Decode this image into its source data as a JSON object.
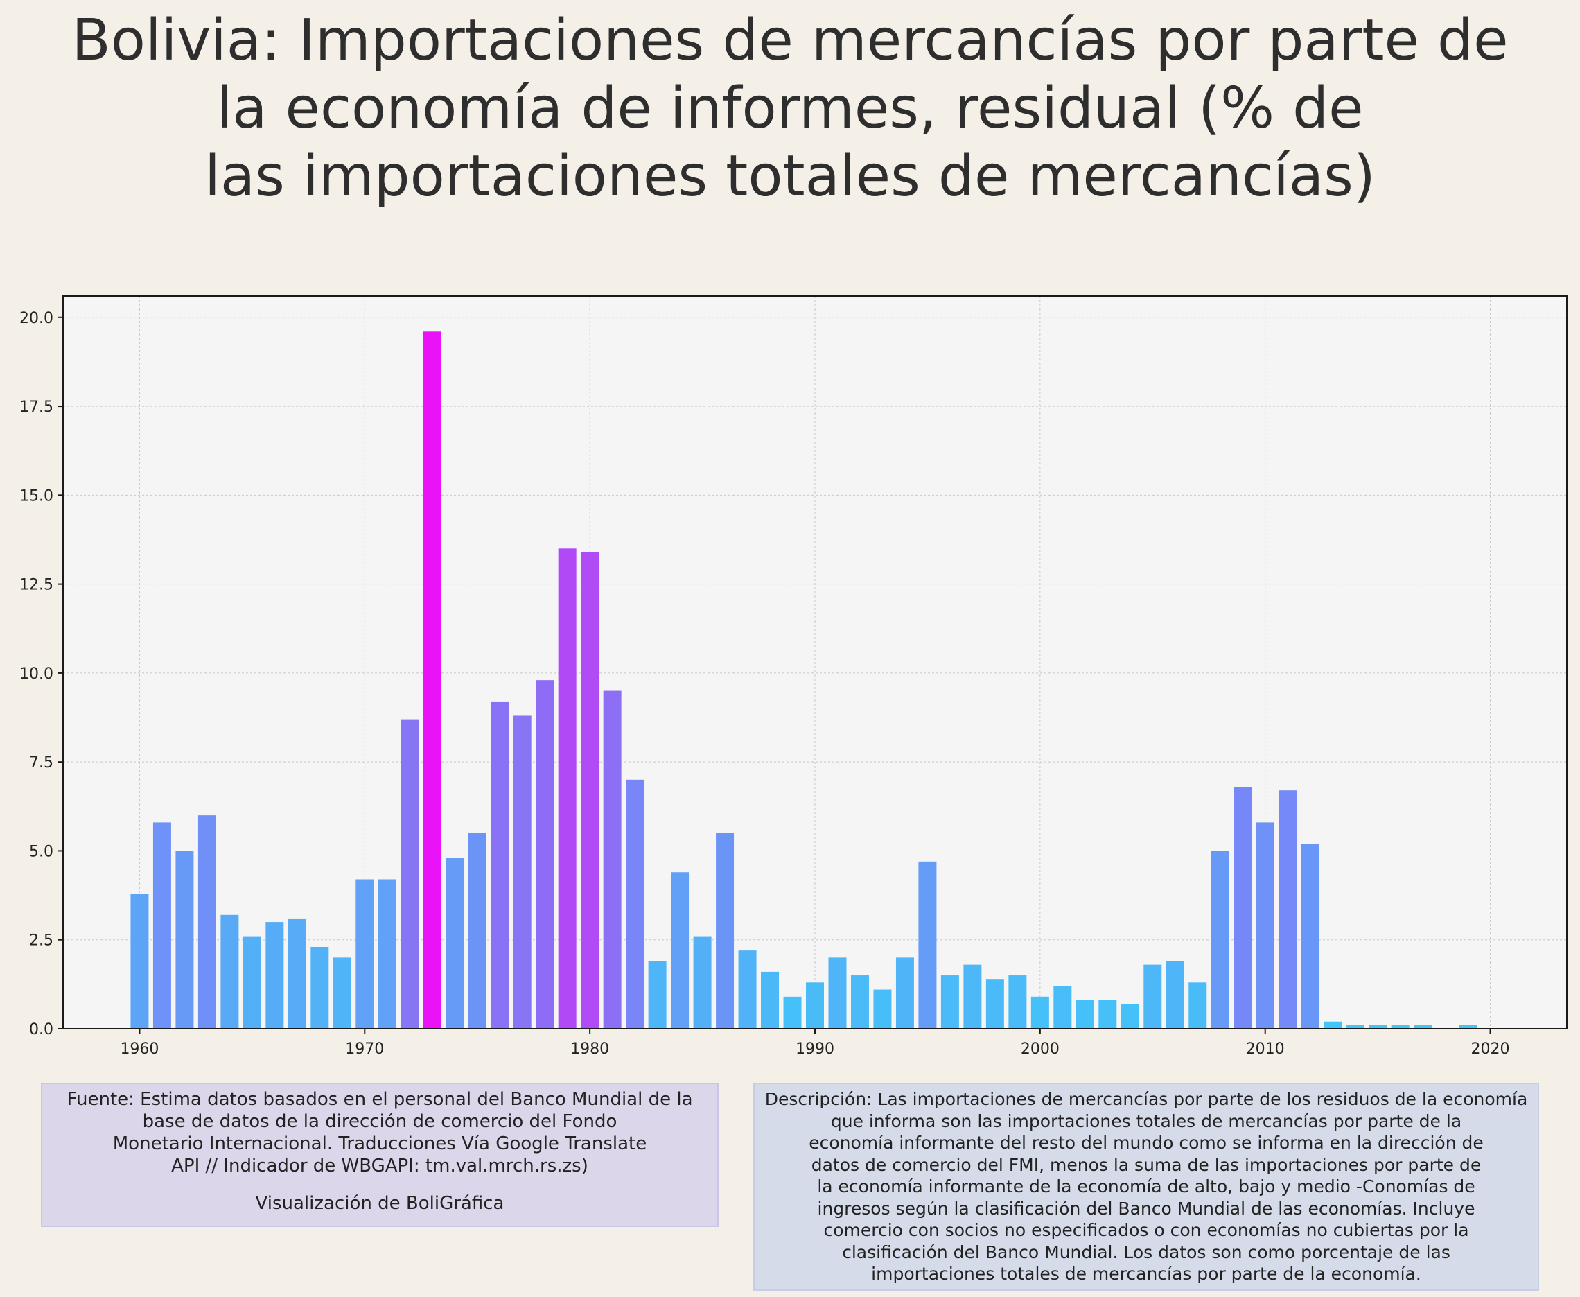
{
  "title_lines": [
    "Bolivia:  Importaciones de mercancías por parte de",
    "la economía de informes, residual (% de",
    "las importaciones totales de mercancías)"
  ],
  "source_text": {
    "lines": [
      "Fuente: Estima datos basados en el personal del Banco Mundial de la",
      "base de datos de la dirección de comercio del Fondo",
      "Monetario Internacional. Traducciones Vía Google Translate",
      "API // Indicador de WBGAPI: tm.val.mrch.rs.zs)"
    ],
    "credit": "Visualización de BoliGráfica"
  },
  "description_text": {
    "lines": [
      "Descripción: Las importaciones de mercancías por parte de los residuos de la economía",
      "que informa son las importaciones totales de mercancías por parte de la",
      "economía informante del resto del mundo como se informa en la dirección de",
      "datos de comercio del FMI, menos la suma de las importaciones por parte de",
      "la economía informante de la economía de alto, bajo y medio -Conomías de",
      "ingresos según la clasificación del Banco Mundial de las economías. Incluye",
      "comercio con socios no especificados o con economías no cubiertas por la",
      "clasificación del Banco Mundial. Los datos son como porcentaje de las",
      "importaciones totales de mercancías por parte de la economía."
    ]
  },
  "colors": {
    "background": "#f4f0e8",
    "plot_background": "#f5f5f5",
    "grid": "#c8c8c8",
    "bar_low": "#3ec8f8",
    "bar_mid": "#8f6cf6",
    "bar_high": "#ea12f6"
  },
  "chart_data": {
    "type": "bar",
    "title": "Bolivia:  Importaciones de mercancías por parte de la economía de informes, residual (% de las importaciones totales de mercancías)",
    "xlabel": "",
    "ylabel": "",
    "xlim": [
      1956.6,
      2023.4
    ],
    "ylim": [
      0,
      20.6
    ],
    "xticks": [
      1960,
      1970,
      1980,
      1990,
      2000,
      2010,
      2020
    ],
    "xtick_labels": [
      "1960",
      "1970",
      "1980",
      "1990",
      "2000",
      "2010",
      "2020"
    ],
    "yticks": [
      0,
      2.5,
      5,
      7.5,
      10,
      12.5,
      15,
      17.5,
      20
    ],
    "ytick_labels": [
      "0.0",
      "2.5",
      "5.0",
      "7.5",
      "10.0",
      "12.5",
      "15.0",
      "17.5",
      "20.0"
    ],
    "grid": true,
    "legend": "none",
    "x": [
      1960,
      1961,
      1962,
      1963,
      1964,
      1965,
      1966,
      1967,
      1968,
      1969,
      1970,
      1971,
      1972,
      1973,
      1974,
      1975,
      1976,
      1977,
      1978,
      1979,
      1980,
      1981,
      1982,
      1983,
      1984,
      1985,
      1986,
      1987,
      1988,
      1989,
      1990,
      1991,
      1992,
      1993,
      1994,
      1995,
      1996,
      1997,
      1998,
      1999,
      2000,
      2001,
      2002,
      2003,
      2004,
      2005,
      2006,
      2007,
      2008,
      2009,
      2010,
      2011,
      2012,
      2013,
      2014,
      2015,
      2016,
      2017,
      2019
    ],
    "values": [
      3.8,
      5.8,
      5.0,
      6.0,
      3.2,
      2.6,
      3.0,
      3.1,
      2.3,
      2.0,
      4.2,
      4.2,
      8.7,
      19.6,
      4.8,
      5.5,
      9.2,
      8.8,
      9.8,
      13.5,
      13.4,
      9.5,
      7.0,
      1.9,
      4.4,
      2.6,
      5.5,
      2.2,
      1.6,
      0.9,
      1.3,
      2.0,
      1.5,
      1.1,
      2.0,
      4.7,
      1.5,
      1.8,
      1.4,
      1.5,
      0.9,
      1.2,
      0.8,
      0.8,
      0.7,
      1.8,
      1.9,
      1.3,
      5.0,
      6.8,
      5.8,
      6.7,
      5.2,
      0.2,
      0.1,
      0.1,
      0.1,
      0.1,
      0.1
    ]
  }
}
